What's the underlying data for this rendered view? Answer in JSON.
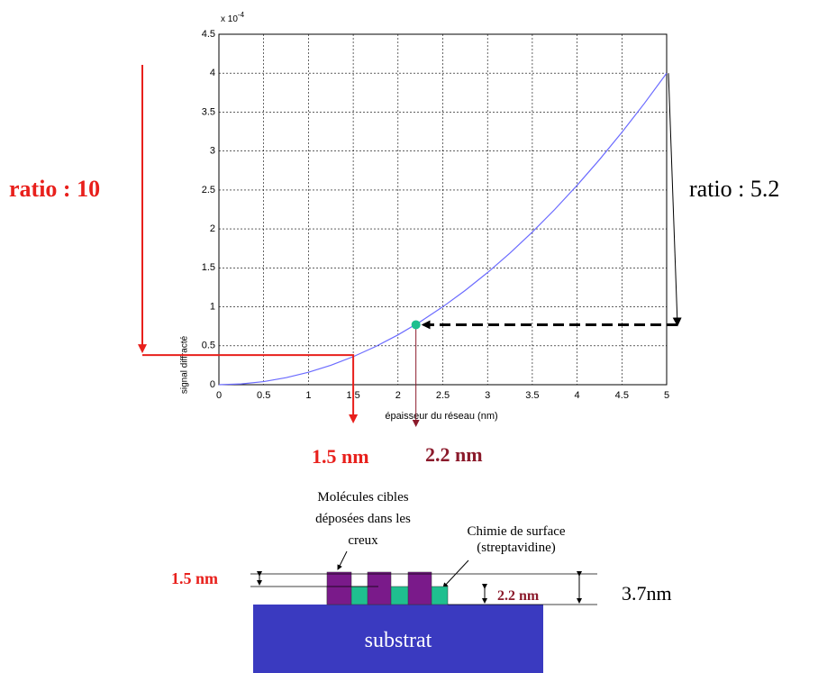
{
  "chart_data": {
    "type": "line",
    "ylabel": "signal diffracté",
    "xlabel": "épaisseur du réseau (nm)",
    "multiplier": {
      "base": "x 10",
      "exponent": "-4"
    },
    "x": [
      0,
      0.25,
      0.5,
      0.75,
      1,
      1.25,
      1.5,
      1.75,
      2,
      2.25,
      2.5,
      2.75,
      3,
      3.25,
      3.5,
      3.75,
      4,
      4.25,
      4.5,
      4.75,
      5
    ],
    "series": [
      {
        "color": "#6b6bff",
        "values": [
          0,
          0.01,
          0.04,
          0.09,
          0.16,
          0.25,
          0.36,
          0.49,
          0.64,
          0.81,
          1.0,
          1.21,
          1.44,
          1.69,
          1.96,
          2.25,
          2.56,
          2.89,
          3.24,
          3.61,
          4.0
        ]
      }
    ],
    "xlim": [
      0,
      5
    ],
    "ylim": [
      0,
      4.5
    ],
    "xticks": [
      0,
      0.5,
      1,
      1.5,
      2,
      2.5,
      3,
      3.5,
      4,
      4.5,
      5
    ],
    "yticks": [
      0,
      0.5,
      1,
      1.5,
      2,
      2.5,
      3,
      3.5,
      4,
      4.5
    ],
    "grid": true,
    "highlights": [
      {
        "x": 1.5,
        "y": 0.38,
        "color": "#e8201c"
      },
      {
        "x": 2.2,
        "y": 0.77,
        "color": "#1fbf8f"
      }
    ],
    "annotations": {
      "ratio_left": "ratio : 10",
      "ratio_right": "ratio : 5.2",
      "label_left": "1.5 nm",
      "label_right": "2.2 nm"
    }
  },
  "diagram": {
    "target_molecules": [
      "Molécules cibles",
      "déposées dans les",
      "creux"
    ],
    "surface_chemistry": [
      "Chimie de surface",
      "(streptavidine)"
    ],
    "height_left": "1.5 nm",
    "height_mid": "2.2 nm",
    "height_total": "3.7nm",
    "substrate": "substrat"
  }
}
